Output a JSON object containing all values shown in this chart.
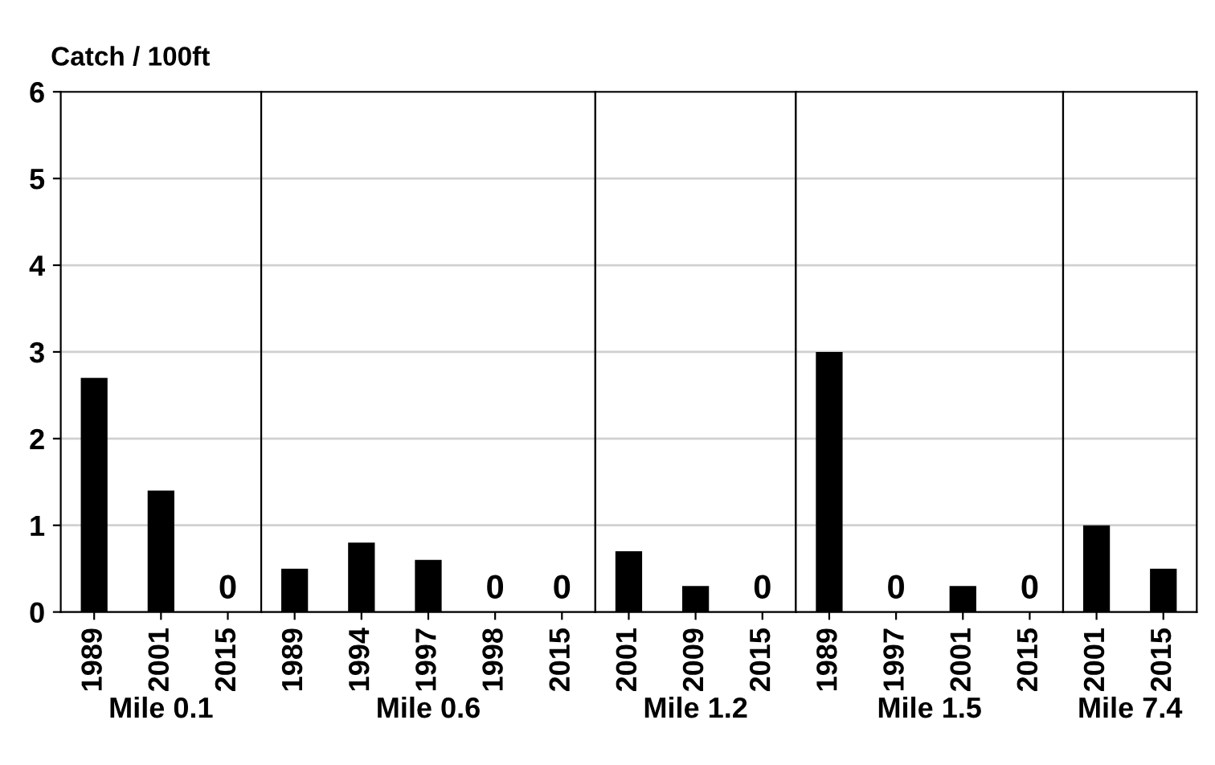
{
  "chart_data": [
    {
      "type": "bar",
      "ylabel": "Catch / 100ft",
      "xlabel": "Mile 0.1",
      "categories": [
        "1989",
        "2001",
        "2015"
      ],
      "values": [
        2.7,
        1.4,
        0
      ],
      "value_labels": [
        null,
        null,
        "0"
      ],
      "color": "#000000",
      "ylim": [
        0,
        6
      ],
      "yticks": [
        0,
        1,
        2,
        3,
        4,
        5,
        6
      ],
      "grid": "y"
    },
    {
      "type": "bar",
      "xlabel": "Mile 0.6",
      "categories": [
        "1989",
        "1994",
        "1997",
        "1998",
        "2015"
      ],
      "values": [
        0.5,
        0.8,
        0.6,
        0,
        0
      ],
      "value_labels": [
        null,
        null,
        null,
        "0",
        "0"
      ],
      "color": "#000000",
      "ylim": [
        0,
        6
      ],
      "yticks": [
        0,
        1,
        2,
        3,
        4,
        5,
        6
      ],
      "grid": "y",
      "tick_labels": "x"
    },
    {
      "type": "bar",
      "xlabel": "Mile 1.2",
      "categories": [
        "2001",
        "2009",
        "2015"
      ],
      "values": [
        0.7,
        0.3,
        0
      ],
      "value_labels": [
        null,
        null,
        "0"
      ],
      "color": "#000000",
      "ylim": [
        0,
        6
      ],
      "yticks": [
        0,
        1,
        2,
        3,
        4,
        5,
        6
      ],
      "grid": "y",
      "tick_labels": "x"
    },
    {
      "type": "bar",
      "xlabel": "Mile 1.5",
      "categories": [
        "1989",
        "1997",
        "2001",
        "2015"
      ],
      "values": [
        3.0,
        0,
        0.3,
        0
      ],
      "value_labels": [
        null,
        "0",
        null,
        "0"
      ],
      "color": "#000000",
      "ylim": [
        0,
        6
      ],
      "yticks": [
        0,
        1,
        2,
        3,
        4,
        5,
        6
      ],
      "grid": "y",
      "tick_labels": "x"
    },
    {
      "type": "bar",
      "xlabel": "Mile 7.4",
      "categories": [
        "2001",
        "2015"
      ],
      "values": [
        1.0,
        0.5
      ],
      "value_labels": [
        null,
        null
      ],
      "color": "#000000",
      "ylim": [
        0,
        6
      ],
      "yticks": [
        0,
        1,
        2,
        3,
        4,
        5,
        6
      ],
      "grid": "y",
      "tick_labels": "x"
    }
  ]
}
